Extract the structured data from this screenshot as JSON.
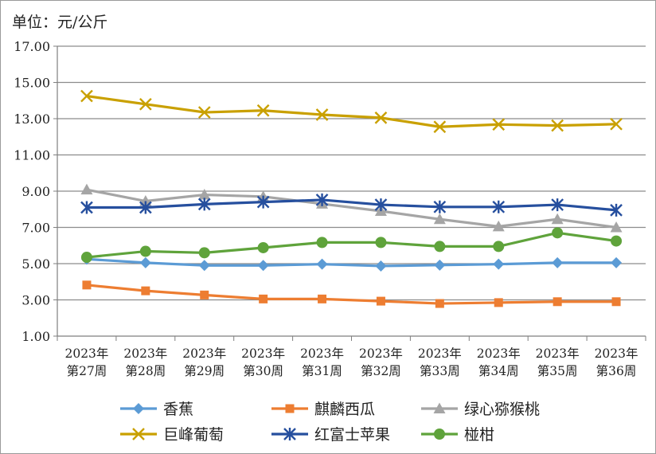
{
  "unit_label": "单位：元/公斤",
  "chart_data": {
    "type": "line",
    "title": "",
    "ylim": [
      1,
      17
    ],
    "yticks": [
      "1.00",
      "3.00",
      "5.00",
      "7.00",
      "9.00",
      "11.00",
      "13.00",
      "15.00",
      "17.00"
    ],
    "grid": true,
    "legend_position": "bottom",
    "categories": [
      [
        "2023年",
        "第27周"
      ],
      [
        "2023年",
        "第28周"
      ],
      [
        "2023年",
        "第29周"
      ],
      [
        "2023年",
        "第30周"
      ],
      [
        "2023年",
        "第31周"
      ],
      [
        "2023年",
        "第32周"
      ],
      [
        "2023年",
        "第33周"
      ],
      [
        "2023年",
        "第34周"
      ],
      [
        "2023年",
        "第35周"
      ],
      [
        "2023年",
        "第36周"
      ]
    ],
    "series": [
      {
        "name": "香蕉",
        "color": "#5b9bd5",
        "marker": "diamond",
        "values": [
          5.25,
          5.05,
          4.9,
          4.9,
          4.97,
          4.87,
          4.92,
          4.97,
          5.05,
          5.05
        ]
      },
      {
        "name": "麒麟西瓜",
        "color": "#ed7d31",
        "marker": "square",
        "values": [
          3.82,
          3.5,
          3.27,
          3.05,
          3.05,
          2.93,
          2.8,
          2.85,
          2.9,
          2.9
        ]
      },
      {
        "name": "绿心猕猴桃",
        "color": "#a5a5a5",
        "marker": "triangle",
        "values": [
          9.08,
          8.45,
          8.8,
          8.7,
          8.3,
          7.9,
          7.45,
          7.05,
          7.45,
          7.0
        ]
      },
      {
        "name": "巨峰葡萄",
        "color": "#c9a000",
        "marker": "x",
        "values": [
          14.25,
          13.8,
          13.35,
          13.45,
          13.22,
          13.05,
          12.55,
          12.68,
          12.62,
          12.7
        ]
      },
      {
        "name": "红富士苹果",
        "color": "#264f9e",
        "marker": "star",
        "values": [
          8.1,
          8.1,
          8.28,
          8.4,
          8.52,
          8.25,
          8.13,
          8.13,
          8.25,
          7.95
        ]
      },
      {
        "name": "椪柑",
        "color": "#5fa33b",
        "marker": "circle",
        "values": [
          5.35,
          5.68,
          5.6,
          5.88,
          6.17,
          6.17,
          5.95,
          5.95,
          6.7,
          6.25
        ]
      }
    ]
  }
}
